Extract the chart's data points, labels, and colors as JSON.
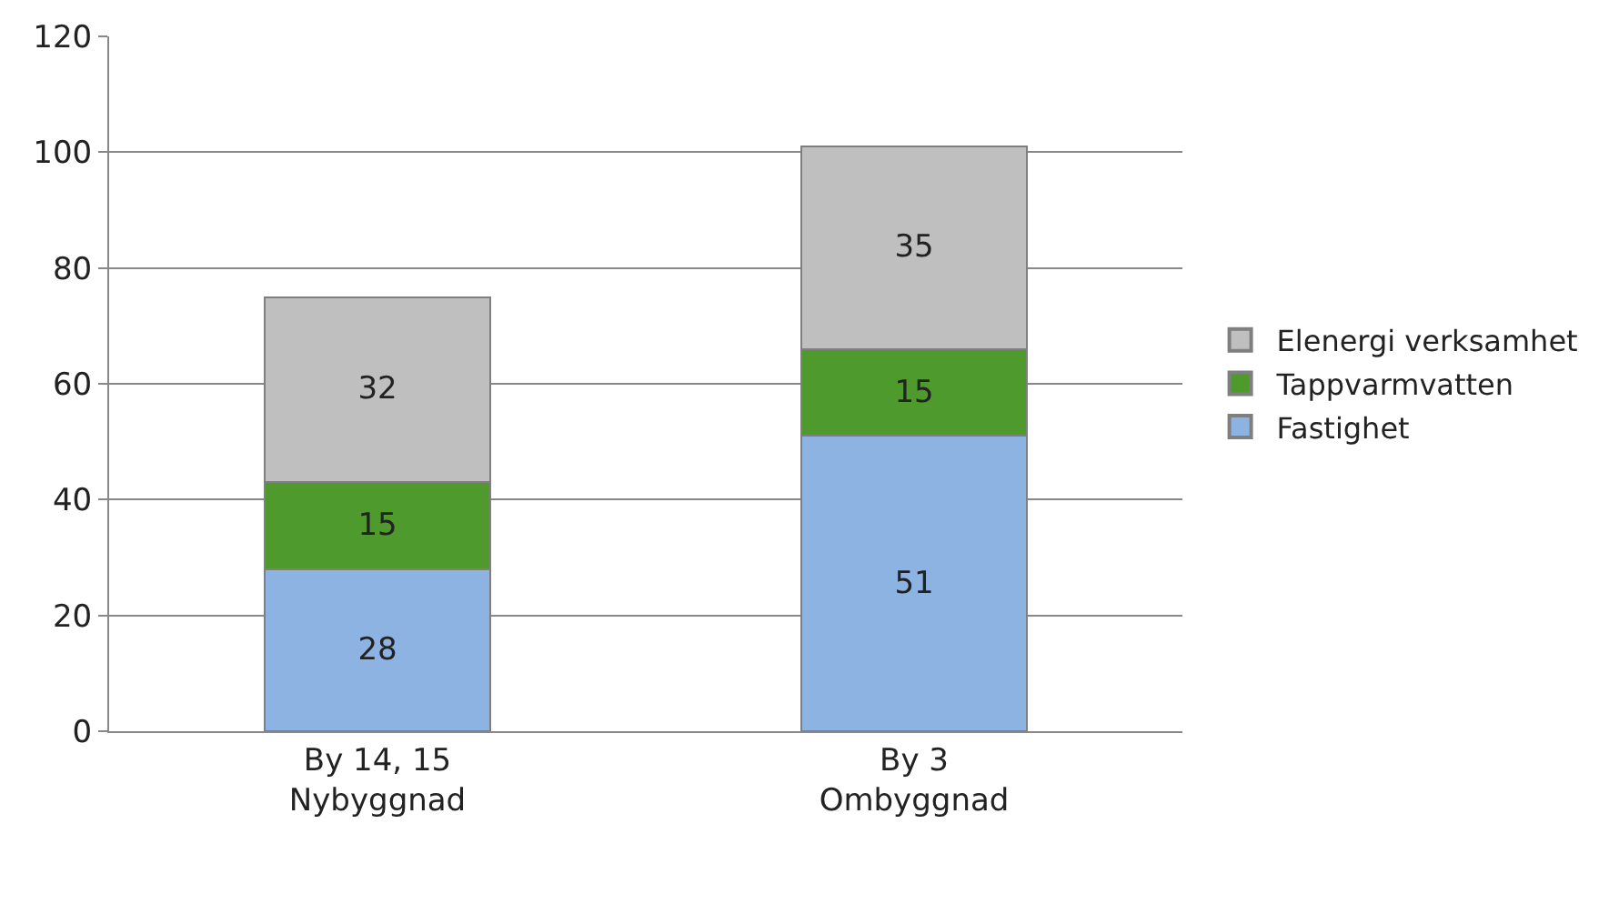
{
  "chart_data": {
    "type": "bar",
    "stacked": true,
    "categories": [
      "By 14, 15\nNybyggnad",
      "By 3\nOmbyggnad"
    ],
    "series": [
      {
        "name": "Fastighet",
        "color": "#8db3e2",
        "values": [
          28,
          51
        ]
      },
      {
        "name": "Tappvarmvatten",
        "color": "#4e9a2c",
        "values": [
          15,
          15
        ]
      },
      {
        "name": "Elenergi verksamhet",
        "color": "#bfbfbf",
        "values": [
          32,
          35
        ]
      }
    ],
    "ylim": [
      0,
      120
    ],
    "yticks": [
      0,
      20,
      40,
      60,
      80,
      100,
      120
    ],
    "grid": "y",
    "legend": "right",
    "data_labels": true
  }
}
